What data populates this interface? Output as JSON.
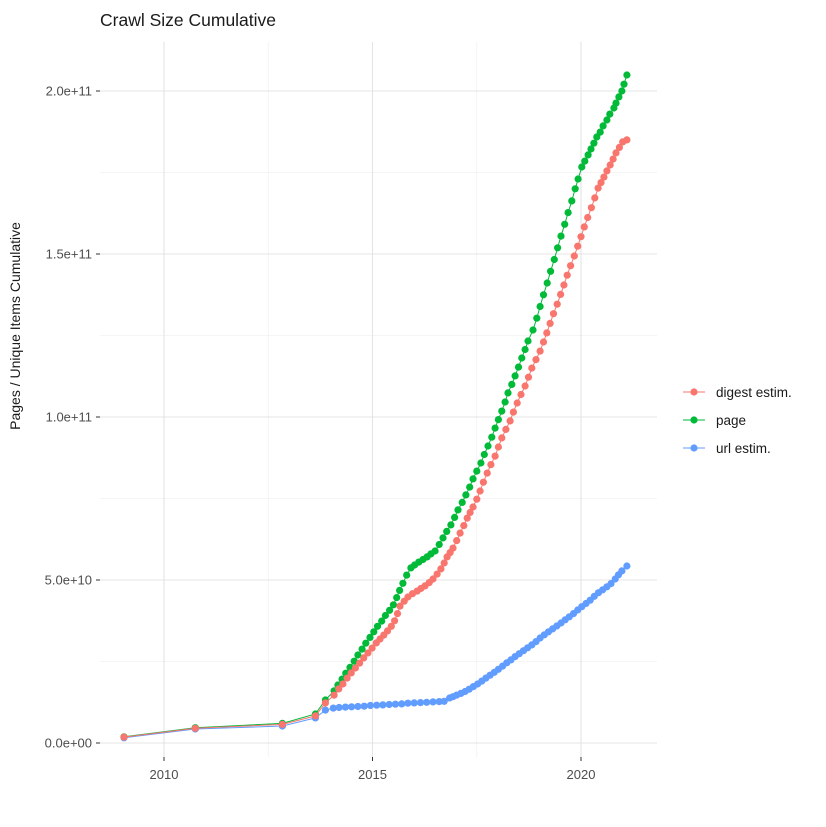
{
  "title": "Crawl Size Cumulative",
  "y_axis": {
    "label": "Pages / Unique Items Cumulative",
    "ticks": [
      {
        "value_e9": 0,
        "label": "0.0e+00"
      },
      {
        "value_e9": 50,
        "label": "5.0e+10"
      },
      {
        "value_e9": 100,
        "label": "1.0e+11"
      },
      {
        "value_e9": 150,
        "label": "1.5e+11"
      },
      {
        "value_e9": 200,
        "label": "2.0e+11"
      }
    ]
  },
  "x_axis": {
    "ticks": [
      {
        "value": 2010,
        "label": "2010"
      },
      {
        "value": 2015,
        "label": "2015"
      },
      {
        "value": 2020,
        "label": "2020"
      }
    ]
  },
  "legend": {
    "items": [
      {
        "label": "digest estim.",
        "color": "#F8766D"
      },
      {
        "label": "page",
        "color": "#00BA38"
      },
      {
        "label": "url estim.",
        "color": "#619CFF"
      }
    ]
  },
  "colors": {
    "grid_major": "#e4e4e4",
    "grid_minor": "#f2f2f2",
    "tick_mark": "#333333",
    "background": "#ffffff"
  },
  "chart_data": {
    "type": "scatter",
    "title": "Crawl Size Cumulative",
    "xlabel": "",
    "ylabel": "Pages / Unique Items Cumulative",
    "x_unit": "decimal year",
    "value_unit": "billions of pages (1e9)",
    "xlim": [
      2008.45,
      2021.82
    ],
    "ylim_e9": [
      0,
      215
    ],
    "grid": true,
    "legend_position": "right",
    "marker": "point-with-line",
    "series": [
      {
        "name": "page",
        "color": "#00BA38",
        "points": [
          [
            2009.04,
            1.9
          ],
          [
            2010.75,
            4.7
          ],
          [
            2012.84,
            6.0
          ],
          [
            2013.63,
            8.9
          ],
          [
            2013.87,
            13.2
          ],
          [
            2014.08,
            16.0
          ],
          [
            2014.17,
            17.8
          ],
          [
            2014.27,
            19.6
          ],
          [
            2014.36,
            21.4
          ],
          [
            2014.46,
            23.2
          ],
          [
            2014.56,
            25.1
          ],
          [
            2014.65,
            27.0
          ],
          [
            2014.75,
            28.8
          ],
          [
            2014.84,
            30.6
          ],
          [
            2014.94,
            32.4
          ],
          [
            2015.03,
            34.1
          ],
          [
            2015.12,
            35.8
          ],
          [
            2015.22,
            37.4
          ],
          [
            2015.31,
            39.1
          ],
          [
            2015.41,
            40.7
          ],
          [
            2015.5,
            42.4
          ],
          [
            2015.58,
            44.6
          ],
          [
            2015.65,
            46.8
          ],
          [
            2015.73,
            49.0
          ],
          [
            2015.82,
            51.5
          ],
          [
            2015.92,
            53.7
          ],
          [
            2016.01,
            54.6
          ],
          [
            2016.11,
            55.5
          ],
          [
            2016.21,
            56.3
          ],
          [
            2016.31,
            57.1
          ],
          [
            2016.4,
            58.0
          ],
          [
            2016.5,
            58.9
          ],
          [
            2016.6,
            60.9
          ],
          [
            2016.69,
            62.9
          ],
          [
            2016.78,
            64.9
          ],
          [
            2016.88,
            66.9
          ],
          [
            2016.97,
            69.2
          ],
          [
            2017.05,
            71.5
          ],
          [
            2017.15,
            73.8
          ],
          [
            2017.24,
            76.1
          ],
          [
            2017.33,
            78.5
          ],
          [
            2017.41,
            81.0
          ],
          [
            2017.5,
            83.4
          ],
          [
            2017.6,
            85.9
          ],
          [
            2017.68,
            88.5
          ],
          [
            2017.77,
            91.1
          ],
          [
            2017.86,
            93.8
          ],
          [
            2017.94,
            96.6
          ],
          [
            2018.02,
            99.2
          ],
          [
            2018.1,
            101.8
          ],
          [
            2018.18,
            104.6
          ],
          [
            2018.25,
            107.4
          ],
          [
            2018.34,
            110.0
          ],
          [
            2018.42,
            112.6
          ],
          [
            2018.5,
            115.3
          ],
          [
            2018.58,
            118.1
          ],
          [
            2018.66,
            120.7
          ],
          [
            2018.73,
            123.3
          ],
          [
            2018.85,
            126.7
          ],
          [
            2018.94,
            130.3
          ],
          [
            2019.02,
            133.9
          ],
          [
            2019.1,
            137.5
          ],
          [
            2019.19,
            141.1
          ],
          [
            2019.27,
            144.7
          ],
          [
            2019.36,
            148.3
          ],
          [
            2019.44,
            151.9
          ],
          [
            2019.52,
            155.5
          ],
          [
            2019.61,
            159.1
          ],
          [
            2019.69,
            162.7
          ],
          [
            2019.78,
            166.3
          ],
          [
            2019.86,
            170.0
          ],
          [
            2019.93,
            173.0
          ],
          [
            2020.02,
            176.7
          ],
          [
            2020.09,
            178.5
          ],
          [
            2020.17,
            180.4
          ],
          [
            2020.24,
            182.2
          ],
          [
            2020.31,
            184.0
          ],
          [
            2020.38,
            185.9
          ],
          [
            2020.46,
            187.4
          ],
          [
            2020.53,
            189.3
          ],
          [
            2020.62,
            191.1
          ],
          [
            2020.69,
            192.9
          ],
          [
            2020.79,
            194.8
          ],
          [
            2020.84,
            196.3
          ],
          [
            2020.91,
            198.2
          ],
          [
            2020.98,
            200.0
          ],
          [
            2021.03,
            202.1
          ],
          [
            2021.1,
            204.9
          ]
        ]
      },
      {
        "name": "url estim.",
        "color": "#619CFF",
        "points": [
          [
            2009.04,
            1.6
          ],
          [
            2010.75,
            4.3
          ],
          [
            2012.84,
            5.2
          ],
          [
            2013.63,
            7.7
          ],
          [
            2013.87,
            10.1
          ],
          [
            2014.06,
            10.7
          ],
          [
            2014.2,
            10.9
          ],
          [
            2014.35,
            11.0
          ],
          [
            2014.5,
            11.1
          ],
          [
            2014.65,
            11.2
          ],
          [
            2014.8,
            11.3
          ],
          [
            2014.95,
            11.5
          ],
          [
            2015.1,
            11.6
          ],
          [
            2015.25,
            11.7
          ],
          [
            2015.4,
            11.8
          ],
          [
            2015.55,
            11.9
          ],
          [
            2015.7,
            12.0
          ],
          [
            2015.85,
            12.2
          ],
          [
            2016.0,
            12.3
          ],
          [
            2016.15,
            12.4
          ],
          [
            2016.3,
            12.5
          ],
          [
            2016.45,
            12.6
          ],
          [
            2016.6,
            12.7
          ],
          [
            2016.72,
            12.8
          ],
          [
            2016.85,
            13.8
          ],
          [
            2016.93,
            14.2
          ],
          [
            2017.02,
            14.7
          ],
          [
            2017.12,
            15.2
          ],
          [
            2017.22,
            15.8
          ],
          [
            2017.32,
            16.5
          ],
          [
            2017.42,
            17.3
          ],
          [
            2017.52,
            18.1
          ],
          [
            2017.62,
            19.0
          ],
          [
            2017.72,
            19.9
          ],
          [
            2017.82,
            20.8
          ],
          [
            2017.92,
            21.7
          ],
          [
            2018.02,
            22.6
          ],
          [
            2018.12,
            23.6
          ],
          [
            2018.22,
            24.6
          ],
          [
            2018.32,
            25.5
          ],
          [
            2018.42,
            26.5
          ],
          [
            2018.52,
            27.4
          ],
          [
            2018.62,
            28.3
          ],
          [
            2018.72,
            29.2
          ],
          [
            2018.82,
            30.1
          ],
          [
            2018.92,
            31.1
          ],
          [
            2019.02,
            32.2
          ],
          [
            2019.12,
            33.2
          ],
          [
            2019.22,
            34.1
          ],
          [
            2019.32,
            35.0
          ],
          [
            2019.42,
            35.9
          ],
          [
            2019.52,
            36.8
          ],
          [
            2019.62,
            37.8
          ],
          [
            2019.72,
            38.7
          ],
          [
            2019.82,
            39.7
          ],
          [
            2019.92,
            40.8
          ],
          [
            2020.02,
            41.8
          ],
          [
            2020.12,
            42.8
          ],
          [
            2020.22,
            43.8
          ],
          [
            2020.32,
            45.0
          ],
          [
            2020.42,
            46.1
          ],
          [
            2020.52,
            47.0
          ],
          [
            2020.62,
            47.9
          ],
          [
            2020.72,
            48.9
          ],
          [
            2020.82,
            50.3
          ],
          [
            2020.9,
            51.6
          ],
          [
            2020.98,
            52.8
          ],
          [
            2021.1,
            54.3
          ]
        ]
      },
      {
        "name": "digest estim.",
        "color": "#F8766D",
        "points": [
          [
            2009.04,
            1.8
          ],
          [
            2010.75,
            4.5
          ],
          [
            2012.84,
            5.7
          ],
          [
            2013.63,
            8.3
          ],
          [
            2013.87,
            12.3
          ],
          [
            2014.08,
            14.7
          ],
          [
            2014.19,
            16.6
          ],
          [
            2014.29,
            18.1
          ],
          [
            2014.39,
            19.9
          ],
          [
            2014.49,
            21.5
          ],
          [
            2014.59,
            23.0
          ],
          [
            2014.69,
            24.5
          ],
          [
            2014.79,
            26.1
          ],
          [
            2014.89,
            27.6
          ],
          [
            2014.99,
            29.1
          ],
          [
            2015.09,
            30.7
          ],
          [
            2015.18,
            31.9
          ],
          [
            2015.27,
            33.1
          ],
          [
            2015.36,
            34.4
          ],
          [
            2015.45,
            35.8
          ],
          [
            2015.53,
            37.5
          ],
          [
            2015.6,
            39.7
          ],
          [
            2015.66,
            42.0
          ],
          [
            2015.76,
            43.5
          ],
          [
            2015.85,
            44.8
          ],
          [
            2015.96,
            45.8
          ],
          [
            2016.07,
            46.6
          ],
          [
            2016.16,
            47.4
          ],
          [
            2016.26,
            48.2
          ],
          [
            2016.36,
            49.2
          ],
          [
            2016.45,
            50.3
          ],
          [
            2016.55,
            51.8
          ],
          [
            2016.64,
            53.4
          ],
          [
            2016.72,
            55.2
          ],
          [
            2016.79,
            57.1
          ],
          [
            2016.86,
            58.4
          ],
          [
            2016.93,
            59.8
          ],
          [
            2017.02,
            62.1
          ],
          [
            2017.1,
            64.4
          ],
          [
            2017.19,
            66.7
          ],
          [
            2017.27,
            69.0
          ],
          [
            2017.34,
            70.7
          ],
          [
            2017.41,
            72.4
          ],
          [
            2017.5,
            74.8
          ],
          [
            2017.58,
            77.3
          ],
          [
            2017.66,
            80.0
          ],
          [
            2017.75,
            82.8
          ],
          [
            2017.84,
            85.4
          ],
          [
            2017.94,
            88.0
          ],
          [
            2018.02,
            90.8
          ],
          [
            2018.1,
            93.6
          ],
          [
            2018.2,
            96.2
          ],
          [
            2018.3,
            98.8
          ],
          [
            2018.38,
            101.5
          ],
          [
            2018.47,
            104.3
          ],
          [
            2018.56,
            106.9
          ],
          [
            2018.66,
            109.5
          ],
          [
            2018.74,
            112.2
          ],
          [
            2018.82,
            115.0
          ],
          [
            2018.92,
            117.6
          ],
          [
            2019.02,
            120.2
          ],
          [
            2019.1,
            123.0
          ],
          [
            2019.18,
            125.8
          ],
          [
            2019.26,
            128.7
          ],
          [
            2019.34,
            131.7
          ],
          [
            2019.43,
            134.6
          ],
          [
            2019.51,
            137.6
          ],
          [
            2019.59,
            140.5
          ],
          [
            2019.67,
            143.5
          ],
          [
            2019.75,
            146.4
          ],
          [
            2019.84,
            149.4
          ],
          [
            2019.92,
            152.4
          ],
          [
            2020.0,
            155.3
          ],
          [
            2020.08,
            158.3
          ],
          [
            2020.16,
            161.2
          ],
          [
            2020.25,
            164.2
          ],
          [
            2020.33,
            167.2
          ],
          [
            2020.41,
            170.2
          ],
          [
            2020.48,
            171.9
          ],
          [
            2020.55,
            173.6
          ],
          [
            2020.62,
            175.5
          ],
          [
            2020.7,
            177.3
          ],
          [
            2020.77,
            179.1
          ],
          [
            2020.84,
            181.0
          ],
          [
            2020.92,
            182.7
          ],
          [
            2021.0,
            184.4
          ],
          [
            2021.1,
            185.0
          ]
        ]
      }
    ]
  }
}
